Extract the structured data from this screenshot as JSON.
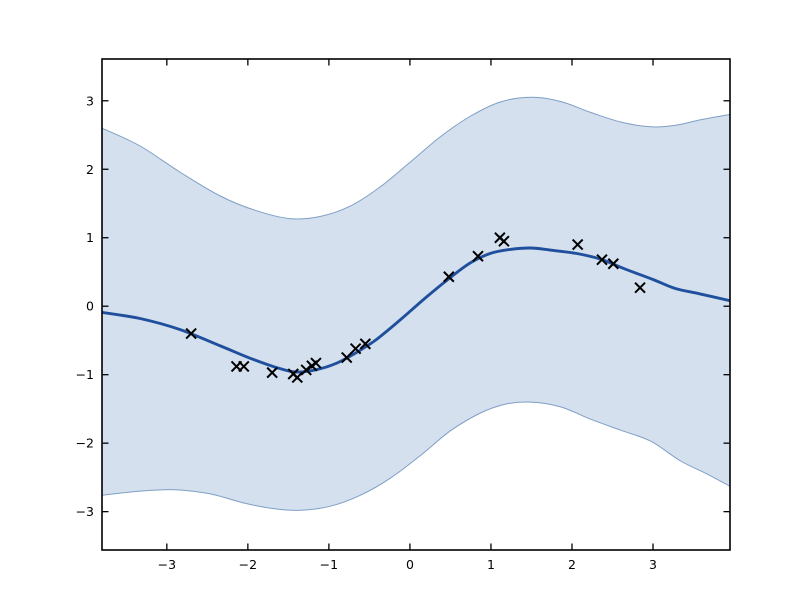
{
  "chart_data": {
    "type": "line",
    "title": "",
    "xlabel": "",
    "ylabel": "",
    "xlim": [
      -3.8,
      3.95
    ],
    "ylim": [
      -3.56,
      3.61
    ],
    "x_ticks": [
      -3,
      -2,
      -1,
      0,
      1,
      2,
      3
    ],
    "y_ticks": [
      3,
      2,
      1,
      0,
      -1,
      -2,
      -3
    ],
    "grid": false,
    "legend": "none",
    "colors": {
      "background": "#ffffff",
      "spine": "#000000",
      "tick_label": "#000000",
      "band_fill": "#d4e0ee",
      "band_edge": "#7f9fc6",
      "mean_line": "#20509d",
      "marker": "#000000"
    },
    "band": {
      "upper": [
        [
          -3.8,
          2.6
        ],
        [
          -3.33,
          2.34
        ],
        [
          -2.84,
          1.96
        ],
        [
          -2.34,
          1.61
        ],
        [
          -1.91,
          1.4
        ],
        [
          -1.48,
          1.28
        ],
        [
          -1.11,
          1.31
        ],
        [
          -0.74,
          1.46
        ],
        [
          -0.37,
          1.74
        ],
        [
          0.0,
          2.1
        ],
        [
          0.37,
          2.47
        ],
        [
          0.74,
          2.77
        ],
        [
          1.11,
          2.98
        ],
        [
          1.49,
          3.05
        ],
        [
          1.86,
          2.99
        ],
        [
          2.23,
          2.83
        ],
        [
          2.6,
          2.69
        ],
        [
          2.97,
          2.62
        ],
        [
          3.27,
          2.64
        ],
        [
          3.58,
          2.72
        ],
        [
          3.95,
          2.8
        ]
      ],
      "lower": [
        [
          -3.8,
          -2.76
        ],
        [
          -3.33,
          -2.7
        ],
        [
          -2.9,
          -2.68
        ],
        [
          -2.47,
          -2.74
        ],
        [
          -2.03,
          -2.88
        ],
        [
          -1.66,
          -2.96
        ],
        [
          -1.35,
          -2.98
        ],
        [
          -0.98,
          -2.92
        ],
        [
          -0.61,
          -2.76
        ],
        [
          -0.24,
          -2.51
        ],
        [
          0.13,
          -2.18
        ],
        [
          0.5,
          -1.82
        ],
        [
          0.87,
          -1.56
        ],
        [
          1.18,
          -1.43
        ],
        [
          1.49,
          -1.4
        ],
        [
          1.86,
          -1.47
        ],
        [
          2.23,
          -1.65
        ],
        [
          2.6,
          -1.81
        ],
        [
          2.97,
          -1.97
        ],
        [
          3.34,
          -2.26
        ],
        [
          3.65,
          -2.44
        ],
        [
          3.95,
          -2.63
        ]
      ]
    },
    "mean_line": {
      "points": [
        [
          -3.8,
          -0.09
        ],
        [
          -3.33,
          -0.18
        ],
        [
          -2.84,
          -0.34
        ],
        [
          -2.34,
          -0.58
        ],
        [
          -1.97,
          -0.76
        ],
        [
          -1.66,
          -0.89
        ],
        [
          -1.42,
          -0.96
        ],
        [
          -1.17,
          -0.93
        ],
        [
          -0.92,
          -0.84
        ],
        [
          -0.68,
          -0.69
        ],
        [
          -0.43,
          -0.5
        ],
        [
          -0.12,
          -0.2
        ],
        [
          0.19,
          0.12
        ],
        [
          0.5,
          0.42
        ],
        [
          0.74,
          0.63
        ],
        [
          0.99,
          0.77
        ],
        [
          1.24,
          0.83
        ],
        [
          1.49,
          0.85
        ],
        [
          1.73,
          0.82
        ],
        [
          2.06,
          0.77
        ],
        [
          2.37,
          0.68
        ],
        [
          2.66,
          0.54
        ],
        [
          3.0,
          0.39
        ],
        [
          3.27,
          0.26
        ],
        [
          3.58,
          0.18
        ],
        [
          3.95,
          0.08
        ]
      ]
    },
    "observations": {
      "marker": "x",
      "points": [
        [
          -2.7,
          -0.4
        ],
        [
          -2.14,
          -0.88
        ],
        [
          -2.05,
          -0.88
        ],
        [
          -1.7,
          -0.97
        ],
        [
          -1.44,
          -0.99
        ],
        [
          -1.39,
          -1.04
        ],
        [
          -1.28,
          -0.93
        ],
        [
          -1.21,
          -0.87
        ],
        [
          -1.16,
          -0.83
        ],
        [
          -0.78,
          -0.75
        ],
        [
          -0.67,
          -0.62
        ],
        [
          -0.55,
          -0.55
        ],
        [
          0.48,
          0.43
        ],
        [
          0.84,
          0.73
        ],
        [
          1.11,
          1.0
        ],
        [
          1.16,
          0.95
        ],
        [
          2.07,
          0.9
        ],
        [
          2.37,
          0.68
        ],
        [
          2.51,
          0.62
        ],
        [
          2.84,
          0.27
        ]
      ]
    }
  }
}
